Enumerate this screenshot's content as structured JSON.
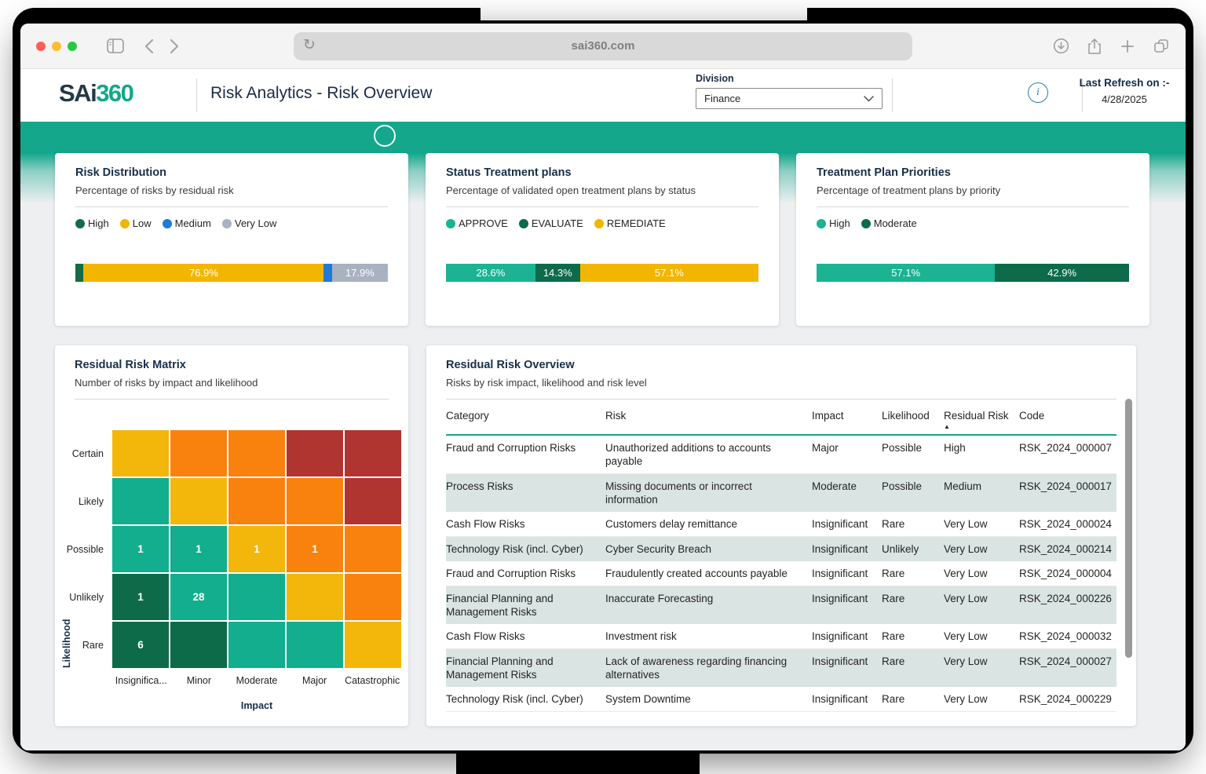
{
  "browser": {
    "url": "sai360.com",
    "icons": {
      "window_controls": [
        "close",
        "minimize",
        "zoom"
      ],
      "reload": "circular-arrow",
      "sidebar": "panel-toggle",
      "back": "chevron-left",
      "forward": "chevron-right",
      "download": "circle-down-arrow",
      "share": "square-up-arrow",
      "new_tab": "plus",
      "tabs": "overlapping-squares"
    }
  },
  "header": {
    "logo": {
      "dark": "SAi",
      "teal": "360"
    },
    "title": "Risk Analytics - Risk Overview",
    "division": {
      "label": "Division",
      "value": "Finance"
    },
    "info_icon": "i",
    "last_refresh": {
      "label": "Last Refresh on :-",
      "date": "4/28/2025"
    }
  },
  "colors": {
    "accent_teal": "#14A78B",
    "series_teal": "#1BB392",
    "dark_green": "#0E6B4A",
    "forest_green": "#156B45",
    "yellow": "#F2B600",
    "blue": "#1F7AD8",
    "gray": "#A9B2BF",
    "stripe": "#D9E4E3",
    "traffic_lights": [
      "#FF5F57",
      "#FEBC2E",
      "#28C840"
    ]
  },
  "cards": [
    {
      "title": "Risk Distribution",
      "subtitle": "Percentage of risks by residual risk",
      "legend": [
        {
          "label": "High",
          "color": "#156B45"
        },
        {
          "label": "Low",
          "color": "#F2B600"
        },
        {
          "label": "Medium",
          "color": "#1F7AD8"
        },
        {
          "label": "Very Low",
          "color": "#A9B2BF"
        }
      ],
      "segments": [
        {
          "pct": 2.6,
          "color": "#156B45",
          "label": ""
        },
        {
          "pct": 76.9,
          "color": "#F2B600",
          "label": "76.9%"
        },
        {
          "pct": 2.6,
          "color": "#1F7AD8",
          "label": ""
        },
        {
          "pct": 17.9,
          "color": "#A9B2BF",
          "label": "17.9%"
        }
      ]
    },
    {
      "title": "Status Treatment plans",
      "subtitle": "Percentage of validated open treatment plans by status",
      "legend": [
        {
          "label": "APPROVE",
          "color": "#1BB392"
        },
        {
          "label": "EVALUATE",
          "color": "#0E6B4A"
        },
        {
          "label": "REMEDIATE",
          "color": "#F2B600"
        }
      ],
      "segments": [
        {
          "pct": 28.6,
          "color": "#1BB392",
          "label": "28.6%"
        },
        {
          "pct": 14.3,
          "color": "#0E6B4A",
          "label": "14.3%"
        },
        {
          "pct": 57.1,
          "color": "#F2B600",
          "label": "57.1%"
        }
      ]
    },
    {
      "title": "Treatment Plan Priorities",
      "subtitle": "Percentage of treatment plans by priority",
      "legend": [
        {
          "label": "High",
          "color": "#1BB392"
        },
        {
          "label": "Moderate",
          "color": "#0E6B4A"
        }
      ],
      "segments": [
        {
          "pct": 57.1,
          "color": "#1BB392",
          "label": "57.1%"
        },
        {
          "pct": 42.9,
          "color": "#0E6B4A",
          "label": "42.9%"
        }
      ]
    }
  ],
  "matrix": {
    "title": "Residual Risk Matrix",
    "subtitle": "Number of risks by impact and likelihood",
    "ylabel": "Likelihood",
    "xlabel": "Impact",
    "row_labels": [
      "Certain",
      "Likely",
      "Possible",
      "Unlikely",
      "Rare"
    ],
    "col_labels": [
      "Insignifica...",
      "Minor",
      "Moderate",
      "Major",
      "Catastrophic"
    ],
    "palette": {
      "teal": "#12AE8D",
      "green": "#0E6B4A",
      "yellow": "#F3B70B",
      "orange": "#F8820D",
      "red": "#B0342F"
    },
    "cells": [
      [
        {
          "c": "yellow",
          "v": ""
        },
        {
          "c": "orange",
          "v": ""
        },
        {
          "c": "orange",
          "v": ""
        },
        {
          "c": "red",
          "v": ""
        },
        {
          "c": "red",
          "v": ""
        }
      ],
      [
        {
          "c": "teal",
          "v": ""
        },
        {
          "c": "yellow",
          "v": ""
        },
        {
          "c": "orange",
          "v": ""
        },
        {
          "c": "orange",
          "v": ""
        },
        {
          "c": "red",
          "v": ""
        }
      ],
      [
        {
          "c": "teal",
          "v": "1"
        },
        {
          "c": "teal",
          "v": "1"
        },
        {
          "c": "yellow",
          "v": "1"
        },
        {
          "c": "orange",
          "v": "1"
        },
        {
          "c": "orange",
          "v": ""
        }
      ],
      [
        {
          "c": "green",
          "v": "1"
        },
        {
          "c": "teal",
          "v": "28"
        },
        {
          "c": "teal",
          "v": ""
        },
        {
          "c": "yellow",
          "v": ""
        },
        {
          "c": "orange",
          "v": ""
        }
      ],
      [
        {
          "c": "green",
          "v": "6"
        },
        {
          "c": "green",
          "v": ""
        },
        {
          "c": "teal",
          "v": ""
        },
        {
          "c": "teal",
          "v": ""
        },
        {
          "c": "yellow",
          "v": ""
        }
      ]
    ]
  },
  "table": {
    "title": "Residual Risk Overview",
    "subtitle": "Risks by risk impact, likelihood and risk level",
    "columns": [
      "Category",
      "Risk",
      "Impact",
      "Likelihood",
      "Residual Risk",
      "Code"
    ],
    "sort_column_index": 4,
    "sort_indicator": "▲",
    "rows": [
      [
        "Fraud and Corruption Risks",
        "Unauthorized additions to accounts payable",
        "Major",
        "Possible",
        "High",
        "RSK_2024_000007"
      ],
      [
        "Process Risks",
        "Missing documents or incorrect information",
        "Moderate",
        "Possible",
        "Medium",
        "RSK_2024_000017"
      ],
      [
        "Cash Flow Risks",
        "Customers delay remittance",
        "Insignificant",
        "Rare",
        "Very Low",
        "RSK_2024_000024"
      ],
      [
        "Technology Risk (incl. Cyber)",
        "Cyber Security Breach",
        "Insignificant",
        "Unlikely",
        "Very Low",
        "RSK_2024_000214"
      ],
      [
        "Fraud and Corruption Risks",
        "Fraudulently created accounts payable",
        "Insignificant",
        "Rare",
        "Very Low",
        "RSK_2024_000004"
      ],
      [
        "Financial Planning and Management Risks",
        "Inaccurate Forecasting",
        "Insignificant",
        "Rare",
        "Very Low",
        "RSK_2024_000226"
      ],
      [
        "Cash Flow Risks",
        "Investment risk",
        "Insignificant",
        "Rare",
        "Very Low",
        "RSK_2024_000032"
      ],
      [
        "Financial Planning and Management Risks",
        "Lack of awareness regarding financing alternatives",
        "Insignificant",
        "Rare",
        "Very Low",
        "RSK_2024_000027"
      ],
      [
        "Technology Risk (incl. Cyber)",
        "System Downtime",
        "Insignificant",
        "Rare",
        "Very Low",
        "RSK_2024_000229"
      ]
    ]
  }
}
